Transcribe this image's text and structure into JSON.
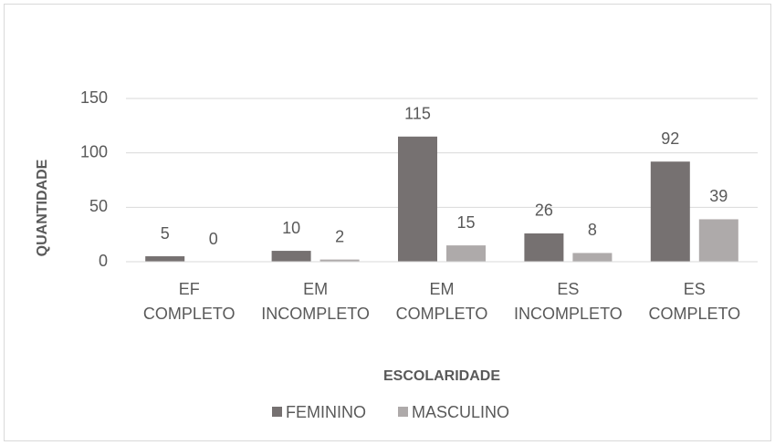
{
  "chart_data": {
    "type": "bar",
    "categories": [
      "EF COMPLETO",
      "EM INCOMPLETO",
      "EM COMPLETO",
      "ES INCOMPLETO",
      "ES COMPLETO"
    ],
    "series": [
      {
        "name": "FEMININO",
        "color": "#767171",
        "values": [
          5,
          10,
          115,
          26,
          92
        ]
      },
      {
        "name": "MASCULINO",
        "color": "#aeaaaa",
        "values": [
          0,
          2,
          15,
          8,
          39
        ]
      }
    ],
    "ylabel": "QUANTIDADE",
    "xlabel": "ESCOLARIDADE",
    "ylim": [
      0,
      150
    ],
    "yticks": [
      0,
      50,
      100,
      150
    ],
    "grid": true,
    "legend": "bottom"
  }
}
